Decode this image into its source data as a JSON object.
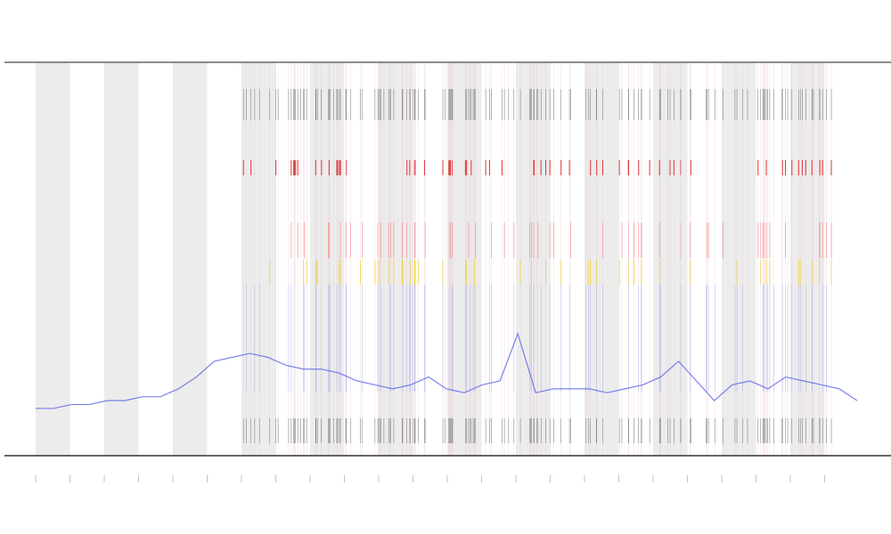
{
  "chart_data": {
    "type": "line",
    "series": [
      {
        "color": "#5a64e6",
        "values": [
          12,
          12,
          13,
          13,
          14,
          14,
          15,
          15,
          17,
          20,
          24,
          25,
          26,
          25,
          23,
          22,
          22,
          21,
          19,
          18,
          17,
          18,
          20,
          17,
          16,
          18,
          19,
          31,
          16,
          17,
          17,
          17,
          16,
          17,
          18,
          20,
          24,
          19,
          14,
          18,
          19,
          17,
          20,
          19,
          18,
          17,
          14
        ]
      }
    ],
    "ylim": [
      0,
      100
    ]
  }
}
